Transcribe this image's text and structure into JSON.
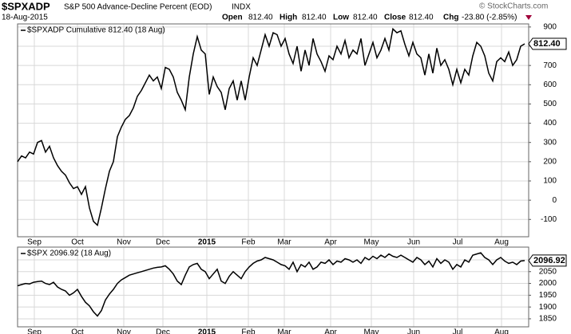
{
  "header": {
    "symbol": "$SPXADP",
    "name": "S&P 500 Advance-Decline Percent (EOD)",
    "exchange": "INDX",
    "date": "18-Aug-2015",
    "open_label": "Open",
    "open": "812.40",
    "high_label": "High",
    "high": "812.40",
    "low_label": "Low",
    "low": "812.40",
    "close_label": "Close",
    "close": "812.40",
    "chg_label": "Chg",
    "chg": "-23.80 (-2.85%)",
    "credit": "© StockCharts.com"
  },
  "chart_data": [
    {
      "type": "line",
      "grid": true,
      "xlim": [
        0,
        128
      ],
      "ylim": [
        -190,
        916
      ],
      "yticks": [
        -100,
        0,
        100,
        200,
        300,
        400,
        500,
        600,
        700,
        800,
        900
      ],
      "xticks": [
        {
          "value": 4.2,
          "label": "Sep"
        },
        {
          "value": 15,
          "label": "Oct"
        },
        {
          "value": 26.6,
          "label": "Nov"
        },
        {
          "value": 36.4,
          "label": "Dec"
        },
        {
          "value": 47.4,
          "label": "2015"
        },
        {
          "value": 57.8,
          "label": "Feb"
        },
        {
          "value": 66.8,
          "label": "Mar"
        },
        {
          "value": 78.4,
          "label": "Apr"
        },
        {
          "value": 88.6,
          "label": "May"
        },
        {
          "value": 99.2,
          "label": "Jun"
        },
        {
          "value": 110.2,
          "label": "Jul"
        },
        {
          "value": 121.2,
          "label": "Aug"
        }
      ],
      "series": [
        {
          "name": "$SPXADP Cumulative 812.40 (18 Aug)",
          "color": "#000000",
          "last_label": "812.40",
          "values": [
            200,
            230,
            220,
            250,
            240,
            300,
            310,
            250,
            280,
            220,
            180,
            150,
            130,
            90,
            60,
            70,
            30,
            70,
            -40,
            -110,
            -130,
            -40,
            60,
            150,
            200,
            330,
            380,
            420,
            440,
            480,
            540,
            570,
            610,
            650,
            620,
            640,
            580,
            690,
            680,
            640,
            560,
            520,
            470,
            640,
            760,
            850,
            780,
            760,
            550,
            640,
            590,
            560,
            470,
            580,
            620,
            520,
            620,
            520,
            640,
            740,
            700,
            780,
            860,
            800,
            870,
            860,
            800,
            840,
            760,
            710,
            800,
            670,
            780,
            700,
            840,
            760,
            720,
            670,
            750,
            730,
            800,
            760,
            830,
            740,
            780,
            760,
            840,
            700,
            760,
            820,
            740,
            780,
            840,
            780,
            890,
            870,
            880,
            810,
            750,
            820,
            760,
            740,
            650,
            760,
            660,
            790,
            700,
            730,
            680,
            600,
            680,
            610,
            680,
            650,
            750,
            820,
            800,
            750,
            660,
            620,
            720,
            740,
            720,
            770,
            700,
            730,
            800,
            812.4
          ]
        }
      ]
    },
    {
      "type": "line",
      "grid": true,
      "xlim": [
        0,
        128
      ],
      "ylim": [
        1816,
        2154
      ],
      "yticks": [
        1850,
        1900,
        1950,
        2000,
        2050,
        2100
      ],
      "xticks": [
        {
          "value": 4.2,
          "label": "Sep"
        },
        {
          "value": 15,
          "label": "Oct"
        },
        {
          "value": 26.6,
          "label": "Nov"
        },
        {
          "value": 36.4,
          "label": "Dec"
        },
        {
          "value": 47.4,
          "label": "2015"
        },
        {
          "value": 57.8,
          "label": "Feb"
        },
        {
          "value": 66.8,
          "label": "Mar"
        },
        {
          "value": 78.4,
          "label": "Apr"
        },
        {
          "value": 88.6,
          "label": "May"
        },
        {
          "value": 99.2,
          "label": "Jun"
        },
        {
          "value": 110.2,
          "label": "Jul"
        },
        {
          "value": 121.2,
          "label": "Aug"
        }
      ],
      "series": [
        {
          "name": "$SPX 2096.92 (18 Aug)",
          "color": "#000000",
          "last_label": "2096.92",
          "values": [
            1990,
            1995,
            2000,
            1998,
            2005,
            2008,
            2010,
            2000,
            1995,
            2005,
            1985,
            1975,
            1968,
            1950,
            1960,
            1975,
            1945,
            1920,
            1905,
            1880,
            1862,
            1885,
            1930,
            1955,
            1975,
            2000,
            2015,
            2025,
            2035,
            2040,
            2045,
            2050,
            2055,
            2060,
            2065,
            2068,
            2070,
            2075,
            2060,
            2040,
            2010,
            1995,
            2035,
            2070,
            2080,
            2085,
            2060,
            2050,
            2020,
            2040,
            2060,
            2010,
            2000,
            2030,
            2050,
            2035,
            2020,
            2050,
            2070,
            2085,
            2095,
            2100,
            2110,
            2105,
            2100,
            2090,
            2080,
            2075,
            2060,
            2090,
            2050,
            2080,
            2070,
            2090,
            2060,
            2070,
            2090,
            2085,
            2100,
            2080,
            2095,
            2090,
            2105,
            2100,
            2090,
            2100,
            2085,
            2110,
            2100,
            2115,
            2105,
            2120,
            2110,
            2125,
            2115,
            2110,
            2120,
            2110,
            2100,
            2090,
            2110,
            2100,
            2080,
            2095,
            2070,
            2105,
            2085,
            2100,
            2090,
            2060,
            2080,
            2070,
            2100,
            2090,
            2120,
            2125,
            2130,
            2110,
            2100,
            2080,
            2100,
            2110,
            2095,
            2085,
            2090,
            2080,
            2095,
            2096.92
          ]
        }
      ]
    }
  ]
}
